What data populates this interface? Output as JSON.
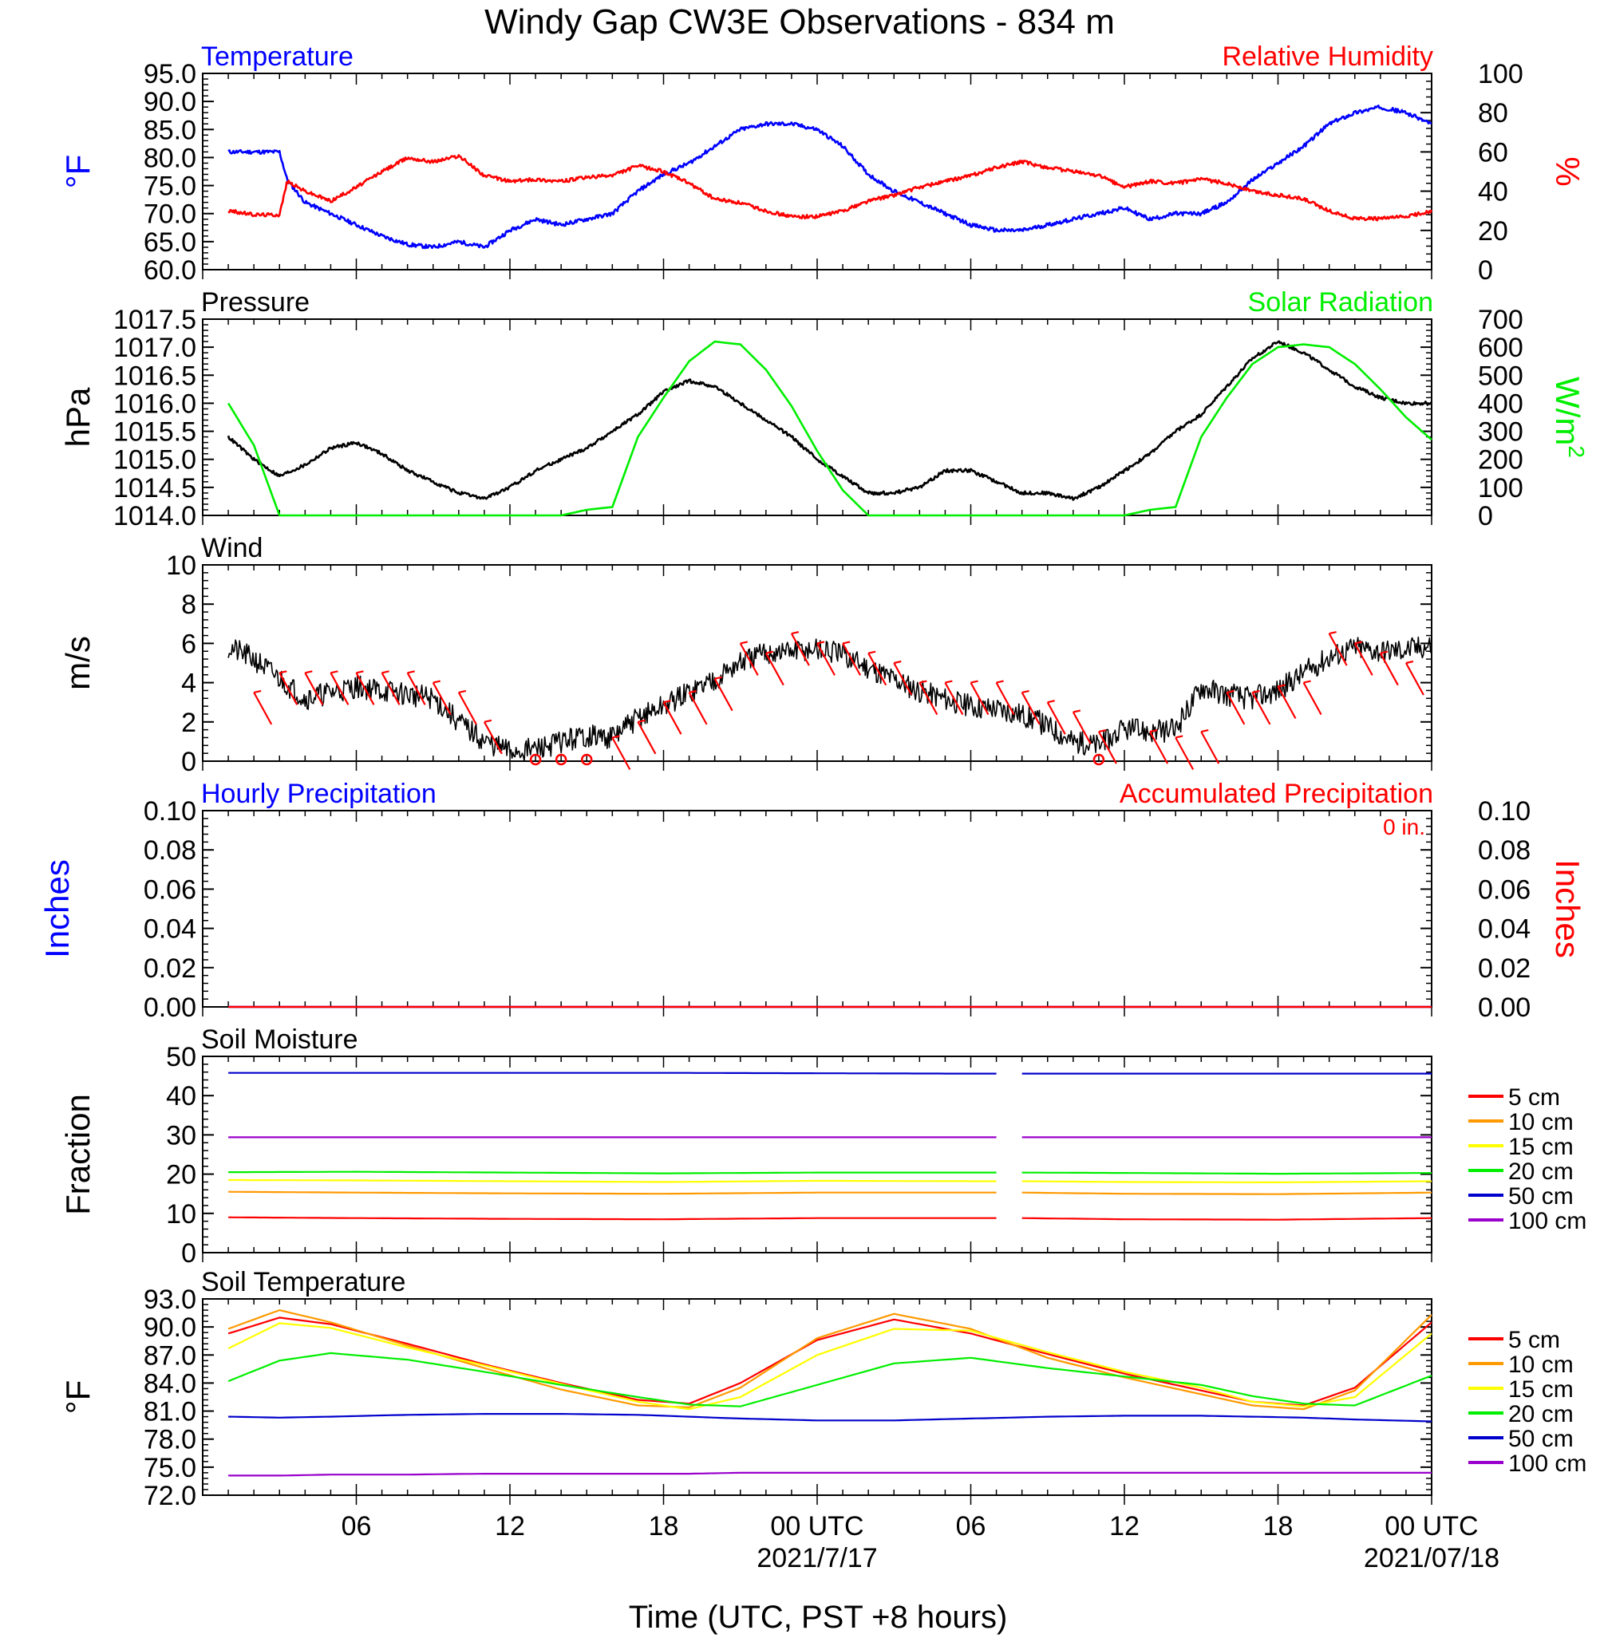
{
  "title": "Windy Gap CW3E Observations - 834 m",
  "x_axis": {
    "label": "Time (UTC, PST +8 hours)",
    "ticks": [
      "06",
      "12",
      "18",
      "00 UTC",
      "06",
      "12",
      "18",
      "00 UTC"
    ],
    "dates": [
      "2021/7/17",
      "2021/07/18"
    ]
  },
  "colors": {
    "temperature": "#0000ff",
    "humidity": "#ff0000",
    "pressure": "#000000",
    "solar": "#00ee00",
    "wind": "#000000",
    "barbs": "#ff0000",
    "precip_hourly": "#0000ff",
    "precip_accum": "#ff0000",
    "soil": [
      "#ff0000",
      "#ff9900",
      "#ffff00",
      "#00ee00",
      "#0000cc",
      "#9900cc"
    ]
  },
  "chart_data": [
    {
      "id": "temp_rh",
      "type": "line",
      "title_left": "Temperature",
      "title_right": "Relative Humidity",
      "ylabel_left": "°F",
      "ylabel_right": "%",
      "ylim_left": [
        60,
        95
      ],
      "ylim_right": [
        0,
        100
      ],
      "yticks_left": [
        "95.0",
        "90.0",
        "85.0",
        "80.0",
        "75.0",
        "70.0",
        "65.0",
        "60.0"
      ],
      "yticks_right": [
        "100",
        "80",
        "60",
        "40",
        "20",
        "0"
      ],
      "x_hours": [
        1,
        2,
        3,
        3.3,
        4,
        5,
        6,
        7,
        8,
        9,
        10,
        11,
        12,
        13,
        14,
        15,
        16,
        17,
        18,
        19,
        20,
        21,
        22,
        23,
        24,
        25,
        26,
        27,
        28,
        29,
        30,
        31,
        32,
        33,
        34,
        35,
        36,
        37,
        38,
        39,
        40,
        41,
        42,
        43,
        44,
        45,
        46,
        47,
        48
      ],
      "series": [
        {
          "name": "Temperature",
          "axis": "left",
          "values": [
            81,
            81,
            81,
            76,
            72,
            70,
            68,
            66,
            64.5,
            64,
            65,
            64,
            67,
            69,
            68,
            69,
            70,
            74,
            77,
            79,
            82,
            85,
            86,
            86,
            85,
            82,
            77,
            74,
            72,
            70,
            68,
            67,
            67,
            68,
            69,
            70,
            71,
            69,
            70,
            70,
            72,
            76,
            79,
            82,
            86,
            88,
            89,
            88,
            86
          ]
        },
        {
          "name": "Relative Humidity",
          "axis": "right",
          "values": [
            30,
            28,
            28,
            45,
            40,
            35,
            42,
            50,
            57,
            55,
            58,
            48,
            45,
            46,
            45,
            47,
            48,
            53,
            50,
            44,
            36,
            34,
            30,
            27,
            27,
            30,
            35,
            38,
            42,
            45,
            48,
            52,
            55,
            52,
            50,
            48,
            42,
            45,
            44,
            46,
            44,
            40,
            38,
            36,
            30,
            26,
            26,
            27,
            30
          ]
        }
      ]
    },
    {
      "id": "pressure_solar",
      "type": "line",
      "title_left": "Pressure",
      "title_right": "Solar Radiation",
      "ylabel_left": "hPa",
      "ylabel_right": "W/m",
      "ylabel_right_sup": "2",
      "ylim_left": [
        1014,
        1017.5
      ],
      "ylim_right": [
        0,
        700
      ],
      "yticks_left": [
        "1017.5",
        "1017.0",
        "1016.5",
        "1016.0",
        "1015.5",
        "1015.0",
        "1014.5",
        "1014.0"
      ],
      "yticks_right": [
        "700",
        "600",
        "500",
        "400",
        "300",
        "200",
        "100",
        "0"
      ],
      "x_hours": [
        1,
        2,
        3,
        4,
        5,
        6,
        7,
        8,
        9,
        10,
        11,
        12,
        13,
        14,
        15,
        16,
        17,
        18,
        19,
        20,
        21,
        22,
        23,
        24,
        25,
        26,
        27,
        28,
        29,
        30,
        31,
        32,
        33,
        34,
        35,
        36,
        37,
        38,
        39,
        40,
        41,
        42,
        43,
        44,
        45,
        46,
        47,
        48
      ],
      "series": [
        {
          "name": "Pressure",
          "axis": "left",
          "values": [
            1015.4,
            1015.0,
            1014.7,
            1014.9,
            1015.2,
            1015.3,
            1015.1,
            1014.8,
            1014.6,
            1014.4,
            1014.3,
            1014.5,
            1014.8,
            1015.0,
            1015.2,
            1015.5,
            1015.8,
            1016.2,
            1016.4,
            1016.3,
            1016.0,
            1015.7,
            1015.4,
            1015.0,
            1014.7,
            1014.4,
            1014.4,
            1014.5,
            1014.8,
            1014.8,
            1014.6,
            1014.4,
            1014.4,
            1014.3,
            1014.5,
            1014.8,
            1015.1,
            1015.5,
            1015.8,
            1016.3,
            1016.8,
            1017.1,
            1016.9,
            1016.6,
            1016.3,
            1016.1,
            1016.0,
            1016.0
          ]
        },
        {
          "name": "Solar Radiation",
          "axis": "right",
          "values": [
            400,
            250,
            0,
            0,
            0,
            0,
            0,
            0,
            0,
            0,
            0,
            0,
            0,
            0,
            20,
            30,
            280,
            420,
            550,
            620,
            610,
            520,
            390,
            230,
            90,
            0,
            0,
            0,
            0,
            0,
            0,
            0,
            0,
            0,
            0,
            0,
            20,
            30,
            280,
            420,
            540,
            600,
            610,
            600,
            540,
            450,
            350,
            270
          ]
        }
      ]
    },
    {
      "id": "wind",
      "type": "line",
      "title_left": "Wind",
      "ylabel_left": "m/s",
      "ylim_left": [
        0,
        10
      ],
      "yticks_left": [
        "10",
        "8",
        "6",
        "4",
        "2",
        "0"
      ],
      "x_hours": [
        1,
        2,
        3,
        4,
        5,
        6,
        7,
        8,
        9,
        10,
        11,
        12,
        13,
        14,
        15,
        16,
        17,
        18,
        19,
        20,
        21,
        22,
        23,
        24,
        25,
        26,
        27,
        28,
        29,
        30,
        31,
        32,
        33,
        34,
        35,
        36,
        37,
        38,
        39,
        40,
        41,
        42,
        43,
        44,
        45,
        46,
        47,
        48
      ],
      "series": [
        {
          "name": "Wind",
          "axis": "left",
          "values": [
            5.8,
            5.2,
            4.2,
            3.2,
            3.5,
            3.8,
            3.6,
            3.4,
            3.2,
            2.0,
            1.0,
            0.5,
            0.6,
            1.0,
            1.3,
            1.2,
            2.2,
            2.8,
            3.5,
            4.2,
            5.0,
            5.5,
            5.6,
            5.7,
            5.4,
            4.8,
            4.2,
            3.6,
            3.2,
            2.8,
            2.7,
            2.4,
            1.8,
            1.0,
            0.8,
            1.6,
            1.5,
            1.6,
            3.8,
            3.4,
            3.2,
            3.6,
            4.5,
            5.3,
            5.8,
            5.6,
            5.7,
            5.9
          ]
        }
      ],
      "barbs": [
        {
          "x": 2,
          "spd": 3.5
        },
        {
          "x": 3,
          "spd": 4.5
        },
        {
          "x": 4,
          "spd": 4.5
        },
        {
          "x": 5,
          "spd": 4.5
        },
        {
          "x": 6,
          "spd": 4.5
        },
        {
          "x": 7,
          "spd": 4.5
        },
        {
          "x": 8,
          "spd": 4.5
        },
        {
          "x": 9,
          "spd": 4.0
        },
        {
          "x": 10,
          "spd": 3.5
        },
        {
          "x": 11,
          "spd": 2.0
        },
        {
          "x": 16,
          "spd": 1.2
        },
        {
          "x": 17,
          "spd": 2.0
        },
        {
          "x": 18,
          "spd": 3.0
        },
        {
          "x": 19,
          "spd": 3.5
        },
        {
          "x": 20,
          "spd": 4.2
        },
        {
          "x": 21,
          "spd": 6.0
        },
        {
          "x": 22,
          "spd": 5.5
        },
        {
          "x": 23,
          "spd": 6.5
        },
        {
          "x": 24,
          "spd": 6.0
        },
        {
          "x": 25,
          "spd": 6.0
        },
        {
          "x": 26,
          "spd": 5.5
        },
        {
          "x": 27,
          "spd": 5.0
        },
        {
          "x": 28,
          "spd": 4.0
        },
        {
          "x": 29,
          "spd": 4.0
        },
        {
          "x": 30,
          "spd": 4.0
        },
        {
          "x": 31,
          "spd": 4.0
        },
        {
          "x": 32,
          "spd": 3.5
        },
        {
          "x": 33,
          "spd": 3.0
        },
        {
          "x": 34,
          "spd": 2.5
        },
        {
          "x": 35,
          "spd": 1.5
        },
        {
          "x": 37,
          "spd": 1.5
        },
        {
          "x": 38,
          "spd": 1.2
        },
        {
          "x": 39,
          "spd": 1.5
        },
        {
          "x": 40,
          "spd": 3.5
        },
        {
          "x": 41,
          "spd": 3.5
        },
        {
          "x": 42,
          "spd": 3.8
        },
        {
          "x": 43,
          "spd": 4.0
        },
        {
          "x": 44,
          "spd": 6.5
        },
        {
          "x": 45,
          "spd": 6.0
        },
        {
          "x": 46,
          "spd": 5.5
        },
        {
          "x": 47,
          "spd": 5.0
        }
      ],
      "calms": [
        13,
        14,
        15,
        35
      ]
    },
    {
      "id": "precip",
      "type": "line",
      "title_left": "Hourly Precipitation",
      "title_right": "Accumulated Precipitation",
      "total_label": "0 in.",
      "ylabel_left": "Inches",
      "ylabel_right": "Inches",
      "ylim_left": [
        0,
        0.1
      ],
      "ylim_right": [
        0,
        0.1
      ],
      "yticks_left": [
        "0.10",
        "0.08",
        "0.06",
        "0.04",
        "0.02",
        "0.00"
      ],
      "yticks_right": [
        "0.10",
        "0.08",
        "0.06",
        "0.04",
        "0.02",
        "0.00"
      ],
      "x_hours": [
        1,
        48
      ],
      "series": [
        {
          "name": "Hourly Precipitation",
          "axis": "left",
          "values": [
            0,
            0
          ]
        },
        {
          "name": "Accumulated Precipitation",
          "axis": "right",
          "values": [
            0,
            0
          ]
        }
      ]
    },
    {
      "id": "soil_moisture",
      "type": "line",
      "title_left": "Soil Moisture",
      "ylabel_left": "Fraction",
      "ylim_left": [
        0,
        50
      ],
      "yticks_left": [
        "50",
        "40",
        "30",
        "20",
        "10",
        "0"
      ],
      "gap_hours": [
        31,
        32
      ],
      "legend": [
        "5 cm",
        "10 cm",
        "15 cm",
        "20 cm",
        "50 cm",
        "100 cm"
      ],
      "x_hours": [
        1,
        6,
        12,
        18,
        24,
        30,
        31,
        32,
        36,
        42,
        48
      ],
      "series": [
        {
          "name": "5 cm",
          "axis": "left",
          "values": [
            9.0,
            8.8,
            8.6,
            8.5,
            8.8,
            8.8,
            8.8,
            8.8,
            8.5,
            8.4,
            8.8
          ]
        },
        {
          "name": "10 cm",
          "axis": "left",
          "values": [
            15.5,
            15.3,
            15.1,
            15.0,
            15.3,
            15.3,
            15.3,
            15.3,
            15.0,
            14.9,
            15.3
          ]
        },
        {
          "name": "15 cm",
          "axis": "left",
          "values": [
            18.5,
            18.4,
            18.2,
            18.0,
            18.3,
            18.2,
            18.2,
            18.2,
            18.0,
            17.9,
            18.2
          ]
        },
        {
          "name": "20 cm",
          "axis": "left",
          "values": [
            20.5,
            20.6,
            20.4,
            20.2,
            20.4,
            20.4,
            20.4,
            20.4,
            20.3,
            20.1,
            20.3
          ]
        },
        {
          "name": "50 cm",
          "axis": "left",
          "values": [
            45.8,
            45.8,
            45.8,
            45.8,
            45.7,
            45.6,
            45.6,
            45.6,
            45.6,
            45.6,
            45.6
          ]
        },
        {
          "name": "100 cm",
          "axis": "left",
          "values": [
            29.4,
            29.4,
            29.4,
            29.4,
            29.4,
            29.4,
            29.4,
            29.4,
            29.4,
            29.4,
            29.4
          ]
        }
      ]
    },
    {
      "id": "soil_temp",
      "type": "line",
      "title_left": "Soil Temperature",
      "ylabel_left": "°F",
      "ylim_left": [
        72,
        93
      ],
      "yticks_left": [
        "93.0",
        "90.0",
        "87.0",
        "84.0",
        "81.0",
        "78.0",
        "75.0",
        "72.0"
      ],
      "legend": [
        "5 cm",
        "10 cm",
        "15 cm",
        "20 cm",
        "50 cm",
        "100 cm"
      ],
      "x_hours": [
        1,
        3,
        5,
        8,
        11,
        14,
        17,
        19,
        21,
        24,
        27,
        30,
        33,
        36,
        39,
        41,
        43,
        45,
        48
      ],
      "series": [
        {
          "name": "5 cm",
          "axis": "left",
          "values": [
            89.3,
            91.0,
            90.3,
            88.2,
            86.0,
            84.0,
            82.2,
            81.8,
            84.0,
            88.6,
            90.8,
            89.3,
            87.1,
            85.0,
            83.2,
            82.0,
            81.6,
            83.5,
            90.5
          ]
        },
        {
          "name": "10 cm",
          "axis": "left",
          "values": [
            89.8,
            91.8,
            90.5,
            88.0,
            85.6,
            83.3,
            81.6,
            81.4,
            83.5,
            88.8,
            91.4,
            89.8,
            86.7,
            84.6,
            82.8,
            81.6,
            81.2,
            83.2,
            91.3
          ]
        },
        {
          "name": "15 cm",
          "axis": "left",
          "values": [
            87.7,
            90.4,
            89.9,
            87.8,
            85.9,
            83.9,
            82.0,
            81.2,
            82.5,
            87.0,
            89.8,
            89.6,
            87.3,
            85.2,
            83.5,
            82.0,
            81.5,
            82.5,
            89.3
          ]
        },
        {
          "name": "20 cm",
          "axis": "left",
          "values": [
            84.2,
            86.4,
            87.2,
            86.5,
            85.2,
            83.8,
            82.5,
            81.7,
            81.5,
            83.8,
            86.1,
            86.7,
            85.6,
            84.7,
            83.8,
            82.6,
            81.8,
            81.6,
            84.8
          ]
        },
        {
          "name": "50 cm",
          "axis": "left",
          "values": [
            80.4,
            80.3,
            80.4,
            80.6,
            80.7,
            80.7,
            80.6,
            80.4,
            80.2,
            80.0,
            80.0,
            80.2,
            80.4,
            80.5,
            80.5,
            80.4,
            80.3,
            80.1,
            79.9
          ]
        },
        {
          "name": "100 cm",
          "axis": "left",
          "values": [
            74.1,
            74.1,
            74.2,
            74.2,
            74.3,
            74.3,
            74.3,
            74.3,
            74.4,
            74.4,
            74.4,
            74.4,
            74.4,
            74.4,
            74.4,
            74.4,
            74.4,
            74.4,
            74.4
          ]
        }
      ]
    }
  ]
}
